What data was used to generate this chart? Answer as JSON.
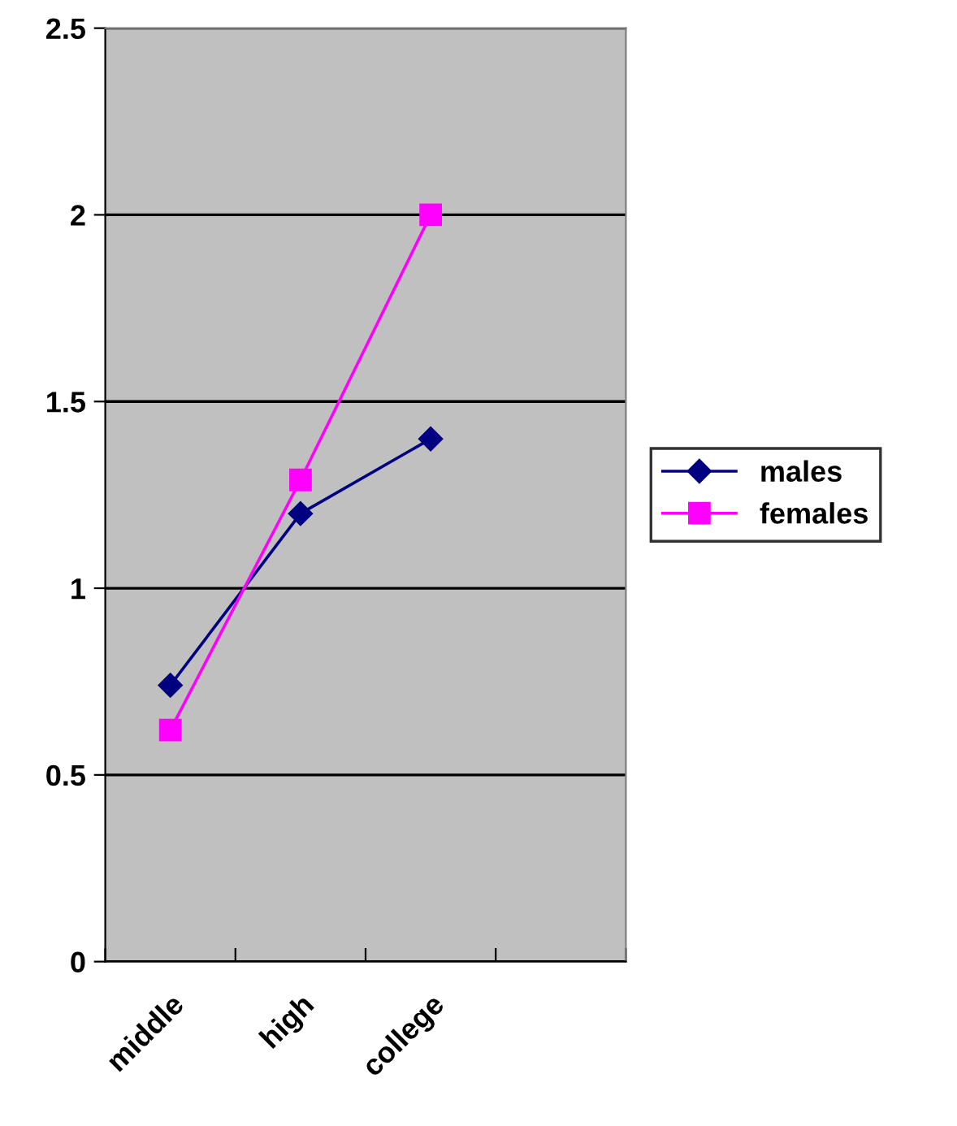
{
  "chart_data": {
    "type": "line",
    "categories": [
      "middle",
      "high",
      "college",
      null
    ],
    "series": [
      {
        "name": "males",
        "color": "#000080",
        "marker": "diamond",
        "values": [
          0.74,
          1.2,
          1.4,
          null
        ]
      },
      {
        "name": "females",
        "color": "#ff00ff",
        "marker": "square",
        "values": [
          0.62,
          1.29,
          2.0,
          null
        ]
      }
    ],
    "ylim": [
      0,
      2.5
    ],
    "yticks": [
      0,
      0.5,
      1,
      1.5,
      2,
      2.5
    ],
    "grid": "y",
    "legend": "right",
    "line_style": "solid"
  }
}
